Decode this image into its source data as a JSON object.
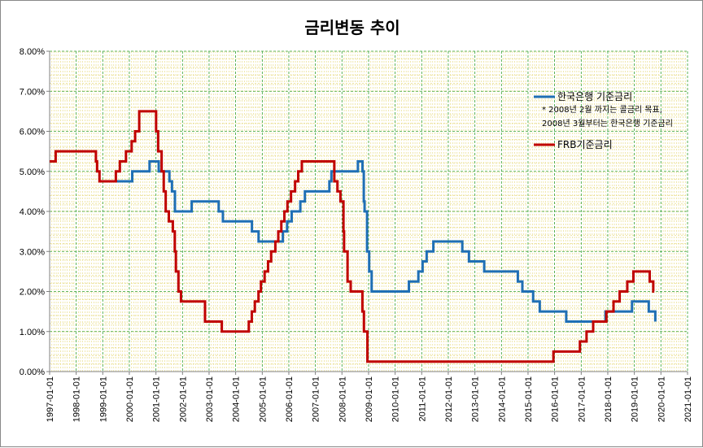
{
  "chart_data": {
    "type": "line",
    "title": "금리변동 추이",
    "xlabel": "",
    "ylabel": "",
    "xlim": [
      "1997-01-01",
      "2021-01-01"
    ],
    "ylim": [
      0,
      8
    ],
    "y_unit": "%",
    "y_ticks": [
      "0.00%",
      "1.00%",
      "2.00%",
      "3.00%",
      "4.00%",
      "5.00%",
      "6.00%",
      "7.00%",
      "8.00%"
    ],
    "x_ticks": [
      "1997-01-01",
      "1998-01-01",
      "1999-01-01",
      "2000-01-01",
      "2001-01-01",
      "2002-01-01",
      "2003-01-01",
      "2004-01-01",
      "2005-01-01",
      "2006-01-01",
      "2007-01-01",
      "2008-01-01",
      "2009-01-01",
      "2010-01-01",
      "2011-01-01",
      "2012-01-01",
      "2013-01-01",
      "2014-01-01",
      "2015-01-01",
      "2016-01-01",
      "2017-01-01",
      "2018-01-01",
      "2019-01-01",
      "2020-01-01",
      "2021-01-01"
    ],
    "grid": true,
    "legend": {
      "placement": "top-right",
      "note_line1": "* 2008년 2월 까지는 콜금리 목표,",
      "note_line2": "2008년 3월부터는 한국은행 기준금리"
    },
    "series": [
      {
        "name": "한국은행 기준금리",
        "color": "#1f6fb5",
        "points": [
          [
            "1999-05-06",
            4.75
          ],
          [
            "2000-02-10",
            5.0
          ],
          [
            "2000-10-05",
            5.25
          ],
          [
            "2001-02-08",
            5.0
          ],
          [
            "2001-07-05",
            4.75
          ],
          [
            "2001-08-09",
            4.5
          ],
          [
            "2001-09-19",
            4.0
          ],
          [
            "2002-05-07",
            4.25
          ],
          [
            "2003-05-13",
            4.0
          ],
          [
            "2003-07-10",
            3.75
          ],
          [
            "2004-08-12",
            3.5
          ],
          [
            "2004-11-11",
            3.25
          ],
          [
            "2005-10-11",
            3.5
          ],
          [
            "2005-12-08",
            3.75
          ],
          [
            "2006-02-09",
            4.0
          ],
          [
            "2006-06-08",
            4.25
          ],
          [
            "2006-08-10",
            4.5
          ],
          [
            "2007-07-12",
            4.75
          ],
          [
            "2007-08-09",
            5.0
          ],
          [
            "2008-08-07",
            5.25
          ],
          [
            "2008-10-09",
            5.0
          ],
          [
            "2008-10-27",
            4.25
          ],
          [
            "2008-11-07",
            4.0
          ],
          [
            "2008-12-11",
            3.0
          ],
          [
            "2009-01-09",
            2.5
          ],
          [
            "2009-02-12",
            2.0
          ],
          [
            "2010-07-09",
            2.25
          ],
          [
            "2010-11-16",
            2.5
          ],
          [
            "2011-01-13",
            2.75
          ],
          [
            "2011-03-10",
            3.0
          ],
          [
            "2011-06-10",
            3.25
          ],
          [
            "2012-07-12",
            3.0
          ],
          [
            "2012-10-11",
            2.75
          ],
          [
            "2013-05-09",
            2.5
          ],
          [
            "2014-08-14",
            2.25
          ],
          [
            "2014-10-15",
            2.0
          ],
          [
            "2015-03-12",
            1.75
          ],
          [
            "2015-06-11",
            1.5
          ],
          [
            "2016-06-09",
            1.25
          ],
          [
            "2017-11-30",
            1.5
          ],
          [
            "2018-11-30",
            1.75
          ],
          [
            "2019-07-18",
            1.5
          ],
          [
            "2019-10-16",
            1.25
          ]
        ]
      },
      {
        "name": "FRB기준금리",
        "color": "#c00000",
        "points": [
          [
            "1997-01-01",
            5.25
          ],
          [
            "1997-03-25",
            5.5
          ],
          [
            "1998-09-29",
            5.25
          ],
          [
            "1998-10-15",
            5.0
          ],
          [
            "1998-11-17",
            4.75
          ],
          [
            "1999-06-30",
            5.0
          ],
          [
            "1999-08-24",
            5.25
          ],
          [
            "1999-11-16",
            5.5
          ],
          [
            "2000-02-02",
            5.75
          ],
          [
            "2000-03-21",
            6.0
          ],
          [
            "2000-05-16",
            6.5
          ],
          [
            "2001-01-03",
            6.0
          ],
          [
            "2001-01-31",
            5.5
          ],
          [
            "2001-03-20",
            5.0
          ],
          [
            "2001-04-18",
            4.5
          ],
          [
            "2001-05-15",
            4.0
          ],
          [
            "2001-06-27",
            3.75
          ],
          [
            "2001-08-21",
            3.5
          ],
          [
            "2001-09-17",
            3.0
          ],
          [
            "2001-10-02",
            2.5
          ],
          [
            "2001-11-06",
            2.0
          ],
          [
            "2001-12-11",
            1.75
          ],
          [
            "2002-11-06",
            1.25
          ],
          [
            "2003-06-25",
            1.0
          ],
          [
            "2004-06-30",
            1.25
          ],
          [
            "2004-08-10",
            1.5
          ],
          [
            "2004-09-21",
            1.75
          ],
          [
            "2004-11-10",
            2.0
          ],
          [
            "2004-12-14",
            2.25
          ],
          [
            "2005-02-02",
            2.5
          ],
          [
            "2005-03-22",
            2.75
          ],
          [
            "2005-05-03",
            3.0
          ],
          [
            "2005-06-30",
            3.25
          ],
          [
            "2005-08-09",
            3.5
          ],
          [
            "2005-09-20",
            3.75
          ],
          [
            "2005-11-01",
            4.0
          ],
          [
            "2005-12-13",
            4.25
          ],
          [
            "2006-01-31",
            4.5
          ],
          [
            "2006-03-28",
            4.75
          ],
          [
            "2006-05-10",
            5.0
          ],
          [
            "2006-06-29",
            5.25
          ],
          [
            "2007-09-18",
            4.75
          ],
          [
            "2007-10-31",
            4.5
          ],
          [
            "2007-12-11",
            4.25
          ],
          [
            "2008-01-22",
            3.5
          ],
          [
            "2008-01-30",
            3.0
          ],
          [
            "2008-03-18",
            2.25
          ],
          [
            "2008-04-30",
            2.0
          ],
          [
            "2008-10-08",
            1.5
          ],
          [
            "2008-10-29",
            1.0
          ],
          [
            "2008-12-16",
            0.25
          ],
          [
            "2015-12-16",
            0.5
          ],
          [
            "2016-12-14",
            0.75
          ],
          [
            "2017-03-15",
            1.0
          ],
          [
            "2017-06-14",
            1.25
          ],
          [
            "2017-12-13",
            1.5
          ],
          [
            "2018-03-21",
            1.75
          ],
          [
            "2018-06-13",
            2.0
          ],
          [
            "2018-09-26",
            2.25
          ],
          [
            "2018-12-19",
            2.5
          ],
          [
            "2019-07-31",
            2.25
          ],
          [
            "2019-09-18",
            2.0
          ],
          [
            "2019-10-01",
            2.0
          ]
        ]
      }
    ]
  }
}
